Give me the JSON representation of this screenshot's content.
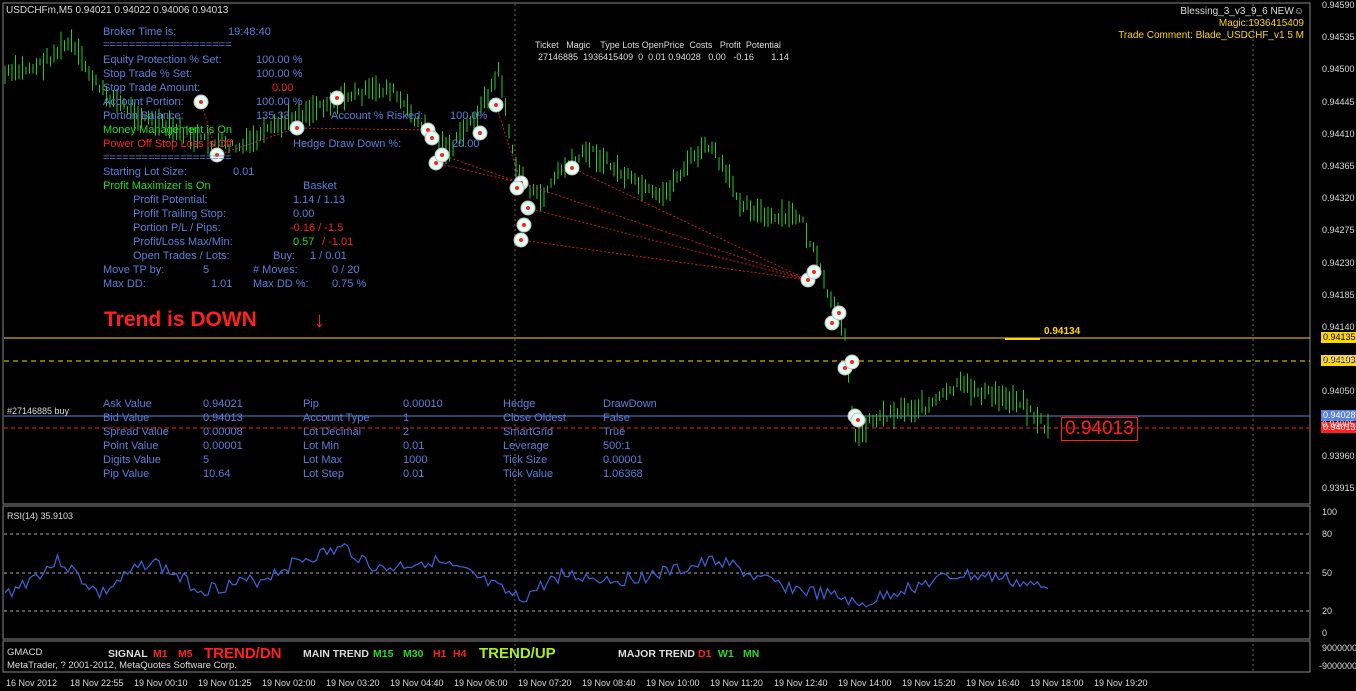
{
  "header": {
    "symbol_info": "USDCHFm,M5  0.94021 0.94022 0.94006 0.94013",
    "ea_name": "Blessing_3_v3_9_6 NEW☺",
    "magic": "Magic:1936415409",
    "trade_comment": "Trade Comment: Blade_USDCHF_v1  5 M"
  },
  "trade_table": {
    "headers": [
      "Ticket",
      "Magic",
      "Type",
      "Lots",
      "OpenPrice",
      "Costs",
      "Profit",
      "Potential"
    ],
    "row": [
      "27146885",
      "1936415409",
      "0",
      "0.01",
      "0.94028",
      "0.00",
      "-0.16",
      "1.14"
    ]
  },
  "info_panel": {
    "broker_time_label": "Broker Time is:",
    "broker_time": "19:48:40",
    "separator": "====================",
    "equity_protection_label": "Equity Protection % Set:",
    "equity_protection": "100.00 %",
    "stop_trade_pct_label": "Stop Trade % Set:",
    "stop_trade_pct": "100.00 %",
    "stop_trade_amount_label": "Stop Trade Amount:",
    "stop_trade_amount": "0.00",
    "account_portion_label": "Account Portion:",
    "account_portion": "100.00 %",
    "portion_balance_label": "Portion Balance:",
    "portion_balance": "135.33",
    "account_risked_label": "Account % Risked:",
    "account_risked": "100.0%",
    "money_management": "Money Management is On",
    "power_off": "Power Off Stop Loss is Off",
    "hedge_dd_label": "Hedge Draw Down %:",
    "hedge_dd": "20.00",
    "starting_lot_label": "Starting Lot Size:",
    "starting_lot": "0.01",
    "profit_maximizer": "Profit Maximizer is On",
    "basket_label": "Basket",
    "profit_potential_label": "Profit Potential:",
    "profit_potential": "1.14  /  1.13",
    "profit_trailing_label": "Profit Trailing Stop:",
    "profit_trailing": "0.00",
    "portion_pl_label": "Portion P/L / Pips:",
    "portion_pl": "-0.16  / -1.5",
    "profit_loss_label": "Profit/Loss Max/Min:",
    "profit_loss_max": "0.57",
    "profit_loss_min": "/ -1.01",
    "open_trades_label": "Open Trades / Lots:",
    "open_trades_buy": "Buy:",
    "open_trades": "1  /  0.01",
    "move_tp_label": "Move TP by:",
    "move_tp": "5",
    "moves_label": "# Moves:",
    "moves": "0  /  20",
    "max_dd_label": "Max DD:",
    "max_dd": "1.01",
    "max_dd_pct_label": "Max DD %:",
    "max_dd_pct": "0.75 %"
  },
  "trend": {
    "text": "Trend is DOWN",
    "arrow": "down-arrow-icon"
  },
  "order_label": "#27146885 buy",
  "market_info": {
    "col1": [
      [
        "Ask Value",
        "0.94021"
      ],
      [
        "Bid Value",
        "0.94013"
      ],
      [
        "Spread Value",
        "0.00008"
      ],
      [
        "Point Value",
        "0.00001"
      ],
      [
        "Digits Value",
        "5"
      ],
      [
        "Pip Value",
        "10.64"
      ]
    ],
    "col2": [
      [
        "Pip",
        "0.00010"
      ],
      [
        "Account Type",
        "1"
      ],
      [
        "Lot Decimal",
        "2"
      ],
      [
        "Lot Min",
        "0.01"
      ],
      [
        "Lot Max",
        "1000"
      ],
      [
        "Lot Step",
        "0.01"
      ]
    ],
    "col3": [
      [
        "Hedge",
        "DrawDown"
      ],
      [
        "Close Oldest",
        "False"
      ],
      [
        "SmartGrid",
        "True"
      ],
      [
        "Leverage",
        "500:1"
      ],
      [
        "Tick Size",
        "0.00001"
      ],
      [
        "Tick Value",
        "1.06368"
      ]
    ]
  },
  "price_labels": {
    "line_label": "0.94134",
    "current_price_box": "0.94013",
    "badge_yellow_1": "0.94135",
    "badge_yellow_2": "0.94103",
    "badge_blue": "0.94028",
    "badge_red": "0.94013"
  },
  "price_axis": [
    "0.94590",
    "0.94535",
    "0.94500",
    "0.94445",
    "0.94410",
    "0.94365",
    "0.94320",
    "0.94275",
    "0.94230",
    "0.94185",
    "0.94140",
    "0.94095",
    "0.94050",
    "0.94005",
    "0.93960",
    "0.93915"
  ],
  "rsi": {
    "label": "RSI(14) 35.9103",
    "axis": [
      "100",
      "80",
      "50",
      "20",
      "0"
    ]
  },
  "gmacd": {
    "label": "GMACD",
    "signal_label": "SIGNAL",
    "m1": "M1",
    "m5": "M5",
    "signal_trend": "TREND/DN",
    "main_trend_label": "MAIN TREND",
    "m15": "M15",
    "m30": "M30",
    "h1": "H1",
    "h4": "H4",
    "main_trend": "TREND/UP",
    "major_trend_label": "MAJOR TREND",
    "d1": "D1",
    "w1": "W1",
    "mn": "MN",
    "axis_top": "9000000",
    "axis_bottom": "-9000000"
  },
  "copyright": "MetaTrader, ? 2001-2012, MetaQuotes Software Corp.",
  "time_axis": [
    "16 Nov 2012",
    "18 Nov 22:55",
    "19 Nov 00:10",
    "19 Nov 01:25",
    "19 Nov 02:00",
    "19 Nov 03:20",
    "19 Nov 04:40",
    "19 Nov 06:00",
    "19 Nov 07:20",
    "19 Nov 08:40",
    "19 Nov 10:00",
    "19 Nov 11:20",
    "19 Nov 12:40",
    "19 Nov 14:00",
    "19 Nov 15:20",
    "19 Nov 16:40",
    "19 Nov 18:00",
    "19 Nov 19:20"
  ],
  "colors": {
    "bars": "#22cc22",
    "rsi": "#3a66dd",
    "yellow_line": "#ffd700",
    "blue_line": "#5a7fdc",
    "red_line": "#ff2020",
    "grid": "#777777"
  }
}
